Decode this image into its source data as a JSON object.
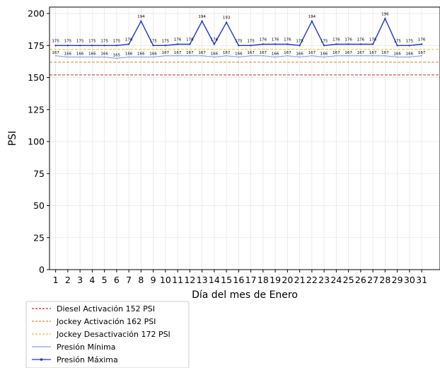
{
  "chart_data": {
    "type": "line",
    "xlabel": "Día del mes de  Enero",
    "ylabel": "PSI",
    "ylim": [
      0,
      205
    ],
    "yticks": [
      0,
      25,
      50,
      75,
      100,
      125,
      150,
      175,
      200
    ],
    "xlim": [
      -0.5,
      31.5
    ],
    "grid": true,
    "legend_position": "below",
    "categories": [
      "1",
      "2",
      "3",
      "4",
      "5",
      "6",
      "7",
      "8",
      "9",
      "10",
      "11",
      "12",
      "13",
      "14",
      "15",
      "16",
      "17",
      "18",
      "19",
      "20",
      "21",
      "22",
      "23",
      "24",
      "25",
      "26",
      "27",
      "28",
      "29",
      "30",
      "31"
    ],
    "reference_lines": [
      {
        "name": "Diesel Activación 152 PSI",
        "value": 152,
        "color": "#d62728",
        "style": "dashed"
      },
      {
        "name": "Jockey Activación 162 PSI",
        "value": 162,
        "color": "#d9822b",
        "style": "dashed"
      },
      {
        "name": "Jockey Desactivación 172 PSI",
        "value": 172,
        "color": "#e3c03a",
        "style": "dashed"
      }
    ],
    "series": [
      {
        "name": "Presión Mínima",
        "color": "#7f9fe8",
        "values": [
          167,
          166,
          166,
          166,
          166,
          165,
          166,
          166,
          166,
          167,
          167,
          167,
          167,
          166,
          167,
          166,
          167,
          167,
          166,
          167,
          166,
          167,
          166,
          167,
          167,
          167,
          167,
          167,
          166,
          166,
          167
        ]
      },
      {
        "name": "Presión Máxima",
        "color": "#1a36d6",
        "values": [
          175,
          175,
          175,
          175,
          175,
          175,
          176,
          194,
          175,
          175,
          176,
          176,
          194,
          176,
          193,
          175,
          175,
          176,
          176,
          176,
          175,
          194,
          175,
          176,
          176,
          176,
          176,
          196,
          175,
          175,
          176
        ]
      }
    ]
  }
}
